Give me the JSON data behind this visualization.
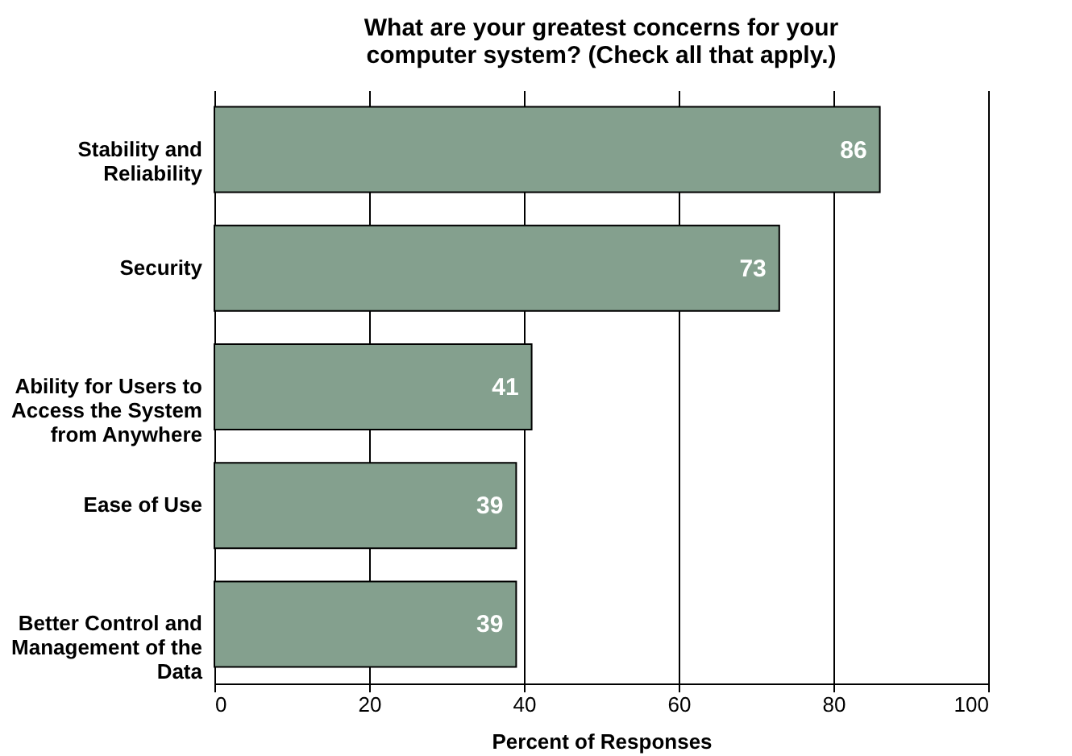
{
  "chart_data": {
    "type": "bar",
    "orientation": "horizontal",
    "title": "What are your greatest concerns for your computer system? (Check all that apply.)",
    "xlabel": "Percent of Responses",
    "categories": [
      "Stability and Reliability",
      "Security",
      "Ability for Users to Access the System from Anywhere",
      "Ease of Use",
      "Better Control and Management of the Data"
    ],
    "values": [
      86,
      73,
      41,
      39,
      39
    ],
    "color": "#84a08e",
    "xlim": [
      0,
      100
    ],
    "xticks": [
      0,
      20,
      40,
      60,
      80,
      100
    ],
    "grid": "x",
    "data_labels": true
  }
}
